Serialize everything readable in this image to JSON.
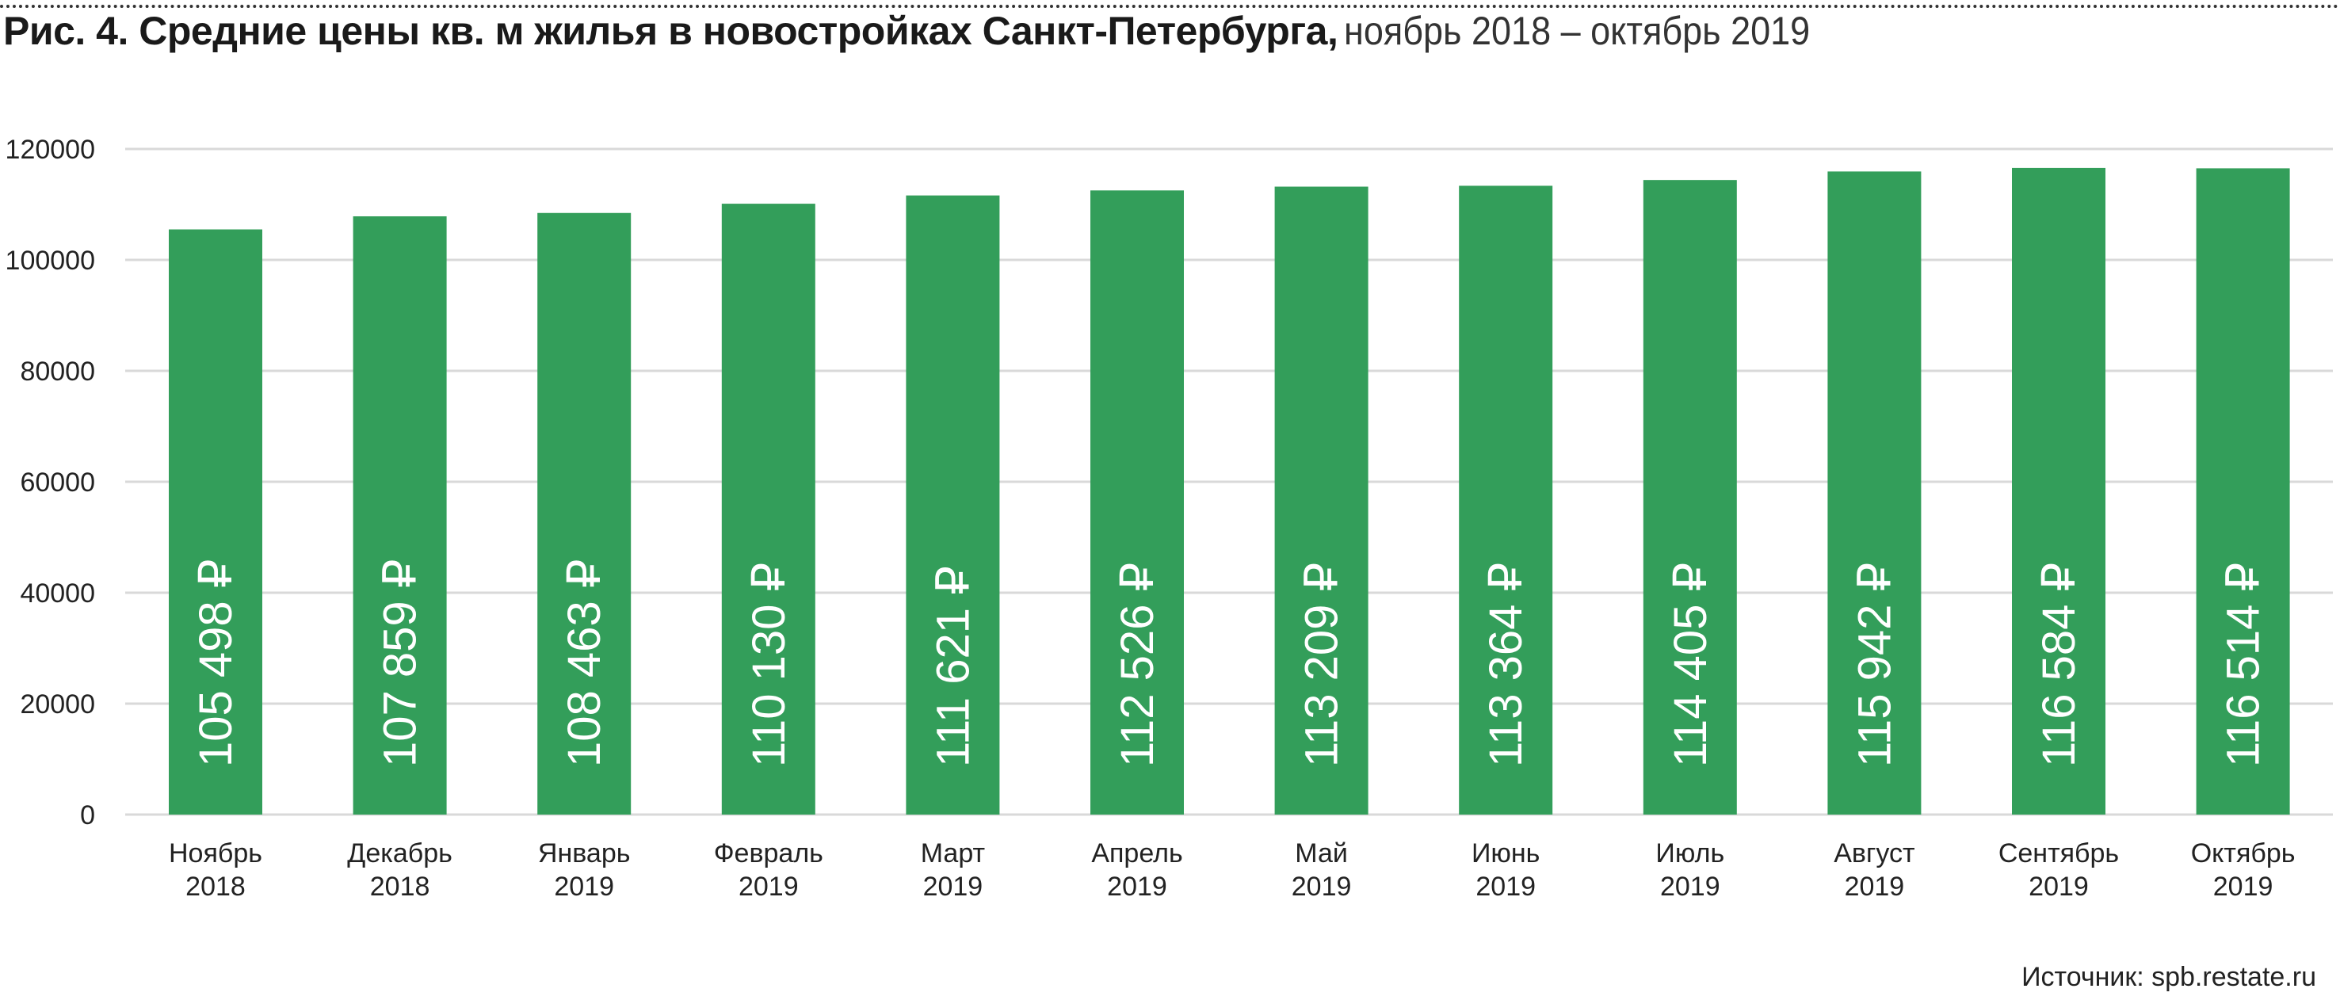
{
  "title": {
    "main": "Рис. 4. Средние цены кв. м жилья в новостройках Санкт-Петербурга,",
    "period": "ноябрь 2018 – октябрь 2019"
  },
  "source": "Источник: spb.restate.ru",
  "colors": {
    "bar": "#339e5a",
    "grid": "#d9d9d9",
    "label": "#ffffff",
    "axis_text": "#222222"
  },
  "chart_data": {
    "type": "bar",
    "categories": [
      [
        "Ноябрь",
        "2018"
      ],
      [
        "Декабрь",
        "2018"
      ],
      [
        "Январь",
        "2019"
      ],
      [
        "Февраль",
        "2019"
      ],
      [
        "Март",
        "2019"
      ],
      [
        "Апрель",
        "2019"
      ],
      [
        "Май",
        "2019"
      ],
      [
        "Июнь",
        "2019"
      ],
      [
        "Июль",
        "2019"
      ],
      [
        "Август",
        "2019"
      ],
      [
        "Сентябрь",
        "2019"
      ],
      [
        "Октябрь",
        "2019"
      ]
    ],
    "values": [
      105498,
      107859,
      108463,
      110130,
      111621,
      112526,
      113209,
      113364,
      114405,
      115942,
      116584,
      116514
    ],
    "data_labels": [
      "105 498 ₽",
      "107 859 ₽",
      "108 463 ₽",
      "110 130 ₽",
      "111 621 ₽",
      "112 526 ₽",
      "113 209 ₽",
      "113 364 ₽",
      "114 405 ₽",
      "115 942 ₽",
      "116 584 ₽",
      "116 514 ₽"
    ],
    "y_ticks": [
      "0",
      "20000",
      "40000",
      "60000",
      "80000",
      "100000",
      "120000"
    ],
    "ylim": [
      0,
      120000
    ],
    "grid": true,
    "legend": "none",
    "xlabel": "",
    "ylabel": ""
  }
}
